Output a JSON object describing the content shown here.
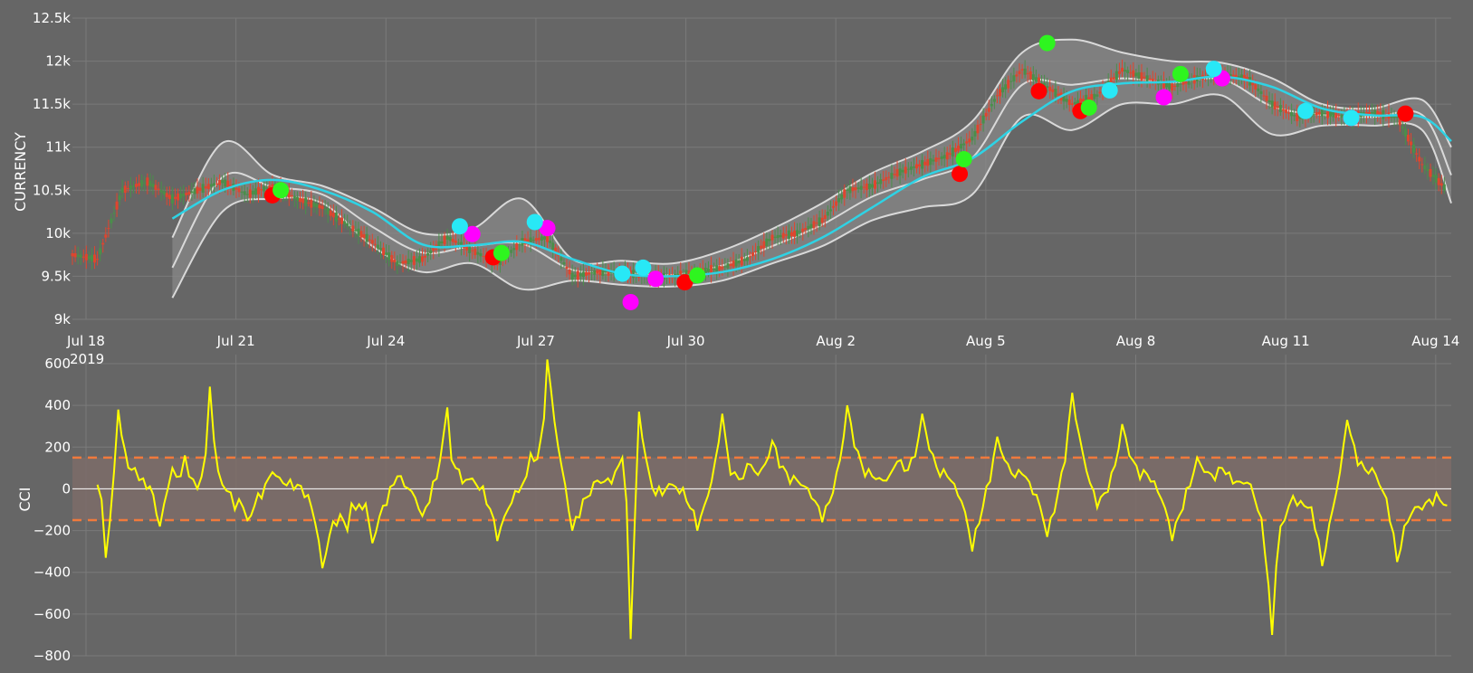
{
  "chart_data": [
    {
      "type": "line",
      "subtype": "candlestick-with-bollinger-bands",
      "ylabel": "CURRENCY",
      "xlabel": "",
      "x_ticks": [
        "Jul 18",
        "Jul 21",
        "Jul 24",
        "Jul 27",
        "Jul 30",
        "Aug 2",
        "Aug 5",
        "Aug 8",
        "Aug 11",
        "Aug 14"
      ],
      "x_year_label": "2019",
      "x_range": [
        "2019-07-18",
        "2019-08-14T14:00"
      ],
      "y_ticks": [
        "9k",
        "9.5k",
        "10k",
        "10.5k",
        "11k",
        "11.5k",
        "12k",
        "12.5k"
      ],
      "ylim": [
        9000,
        12500
      ],
      "price_series": {
        "x": [
          "2019-07-18",
          "2019-07-18T12:00",
          "2019-07-19",
          "2019-07-19T12:00",
          "2019-07-20",
          "2019-07-20T12:00",
          "2019-07-21",
          "2019-07-21T12:00",
          "2019-07-22",
          "2019-07-22T12:00",
          "2019-07-23",
          "2019-07-23T12:00",
          "2019-07-24",
          "2019-07-24T12:00",
          "2019-07-25",
          "2019-07-25T12:00",
          "2019-07-26",
          "2019-07-26T12:00",
          "2019-07-27",
          "2019-07-27T12:00",
          "2019-07-28",
          "2019-07-28T12:00",
          "2019-07-29",
          "2019-07-29T12:00",
          "2019-07-30",
          "2019-07-30T12:00",
          "2019-07-31",
          "2019-07-31T12:00",
          "2019-08-01",
          "2019-08-01T12:00",
          "2019-08-02",
          "2019-08-02T12:00",
          "2019-08-03",
          "2019-08-03T12:00",
          "2019-08-04",
          "2019-08-04T12:00",
          "2019-08-05",
          "2019-08-05T12:00",
          "2019-08-06",
          "2019-08-06T12:00",
          "2019-08-07",
          "2019-08-07T12:00",
          "2019-08-08",
          "2019-08-08T12:00",
          "2019-08-09",
          "2019-08-09T12:00",
          "2019-08-10",
          "2019-08-10T12:00",
          "2019-08-11",
          "2019-08-11T12:00",
          "2019-08-12",
          "2019-08-12T12:00",
          "2019-08-13",
          "2019-08-13T12:00",
          "2019-08-14",
          "2019-08-14T12:00"
        ],
        "y": [
          9750,
          9700,
          10500,
          10600,
          10400,
          10500,
          10600,
          10450,
          10550,
          10400,
          10300,
          10100,
          9900,
          9650,
          9700,
          9950,
          9800,
          9650,
          9900,
          9950,
          9500,
          9550,
          9550,
          9500,
          9500,
          9550,
          9600,
          9700,
          9950,
          10000,
          10150,
          10500,
          10550,
          10700,
          10800,
          10900,
          11100,
          11600,
          11900,
          11700,
          11500,
          11600,
          11900,
          11800,
          11700,
          11800,
          11850,
          11800,
          11500,
          11350,
          11400,
          11350,
          11400,
          11350,
          10800,
          10500
        ]
      },
      "moving_average": {
        "x": [
          "2019-07-20",
          "2019-07-21",
          "2019-07-22",
          "2019-07-23",
          "2019-07-24",
          "2019-07-25",
          "2019-07-26",
          "2019-07-27",
          "2019-07-28",
          "2019-07-29",
          "2019-07-30",
          "2019-07-31",
          "2019-08-01",
          "2019-08-02",
          "2019-08-03",
          "2019-08-04",
          "2019-08-05",
          "2019-08-06",
          "2019-08-07",
          "2019-08-08",
          "2019-08-09",
          "2019-08-10",
          "2019-08-11",
          "2019-08-12",
          "2019-08-13",
          "2019-08-14",
          "2019-08-14T14:00"
        ],
        "y": [
          10170,
          10500,
          10620,
          10500,
          10250,
          9870,
          9860,
          9900,
          9700,
          9530,
          9500,
          9550,
          9700,
          9950,
          10300,
          10650,
          10870,
          11300,
          11650,
          11740,
          11760,
          11820,
          11700,
          11450,
          11370,
          11350,
          11070
        ]
      },
      "band_upper": [
        9950,
        11050,
        10680,
        10550,
        10300,
        10000,
        10050,
        10400,
        9700,
        9680,
        9650,
        9800,
        10050,
        10350,
        10700,
        10950,
        11300,
        12100,
        12250,
        12100,
        12000,
        11980,
        11800,
        11500,
        11450,
        11550,
        11000
      ],
      "band_lower": [
        9250,
        10250,
        10400,
        10350,
        9850,
        9550,
        9650,
        9350,
        9450,
        9400,
        9380,
        9450,
        9650,
        9850,
        10150,
        10300,
        10450,
        11350,
        11200,
        11500,
        11500,
        11600,
        11150,
        11250,
        11250,
        11200,
        10350
      ],
      "signals": {
        "cyan": [
          [
            "2019-07-25T18:00",
            10080
          ],
          [
            "2019-07-27T06:00",
            10130
          ],
          [
            "2019-07-29T00:00",
            9530
          ],
          [
            "2019-07-29T10:00",
            9600
          ],
          [
            "2019-08-07T18:00",
            11660
          ],
          [
            "2019-08-09T20:00",
            11910
          ],
          [
            "2019-08-11T16:00",
            11420
          ],
          [
            "2019-08-12T14:00",
            11340
          ]
        ],
        "magenta": [
          [
            "2019-07-26T00:00",
            9990
          ],
          [
            "2019-07-27T12:00",
            10060
          ],
          [
            "2019-07-29T04:00",
            9200
          ],
          [
            "2019-07-29T16:00",
            9470
          ],
          [
            "2019-08-08T20:00",
            11580
          ],
          [
            "2019-08-10T00:00",
            11800
          ],
          [
            "2019-08-12T14:00",
            11340
          ]
        ],
        "red": [
          [
            "2019-07-22T00:00",
            10440
          ],
          [
            "2019-07-26T10:00",
            9720
          ],
          [
            "2019-07-30T06:00",
            9430
          ],
          [
            "2019-08-04T18:00",
            10690
          ],
          [
            "2019-08-06T08:00",
            11650
          ],
          [
            "2019-08-07T04:00",
            11420
          ],
          [
            "2019-08-13T16:00",
            11390
          ]
        ],
        "green": [
          [
            "2019-07-22T04:00",
            10500
          ],
          [
            "2019-07-26T14:00",
            9770
          ],
          [
            "2019-07-30T12:00",
            9510
          ],
          [
            "2019-08-04T20:00",
            10860
          ],
          [
            "2019-08-06T12:00",
            12210
          ],
          [
            "2019-08-07T08:00",
            11460
          ],
          [
            "2019-08-09T04:00",
            11850
          ]
        ]
      },
      "colors": {
        "background": "#666666",
        "grid": "#7a7a7a",
        "band": "#d9d9d9",
        "band_fill": "#8a8a8a",
        "moving_average": "#2ed3e5",
        "candle_up": "#4a8f4a",
        "candle_down": "#e0452e",
        "signal_cyan": "#28e8f6",
        "signal_magenta": "#ff00ff",
        "signal_red": "#ff0000",
        "signal_green": "#2ef51f"
      }
    },
    {
      "type": "line",
      "ylabel": "CCI",
      "xlabel": "",
      "y_ticks": [
        "600",
        "400",
        "200",
        "0",
        "−200",
        "−400",
        "−600",
        "−800"
      ],
      "ylim": [
        -800,
        600
      ],
      "threshold_upper": 150,
      "threshold_lower": -150,
      "series": [
        {
          "x": [
            "2019-07-18T12:00",
            "2019-07-18T16:00",
            "2019-07-18T22:00",
            "2019-07-19T06:00",
            "2019-07-19T10:00",
            "2019-07-19T18:00",
            "2019-07-20T00:00",
            "2019-07-20T06:00",
            "2019-07-20T12:00",
            "2019-07-20T18:00",
            "2019-07-21T00:00",
            "2019-07-21T06:00",
            "2019-07-21T12:00",
            "2019-07-22T00:00",
            "2019-07-22T12:00",
            "2019-07-23T00:00",
            "2019-07-23T12:00",
            "2019-07-23T16:00",
            "2019-07-24T00:00",
            "2019-07-24T12:00",
            "2019-07-25T00:00",
            "2019-07-25T12:00",
            "2019-07-25T16:00",
            "2019-07-26T00:00",
            "2019-07-26T12:00",
            "2019-07-27T00:00",
            "2019-07-27T04:00",
            "2019-07-27T12:00",
            "2019-07-28T00:00",
            "2019-07-28T12:00",
            "2019-07-29T00:00",
            "2019-07-29T04:00",
            "2019-07-29T08:00",
            "2019-07-29T16:00",
            "2019-07-30T00:00",
            "2019-07-30T12:00",
            "2019-07-31T00:00",
            "2019-07-31T06:00",
            "2019-07-31T12:00",
            "2019-08-01T00:00",
            "2019-08-01T12:00",
            "2019-08-02T00:00",
            "2019-08-02T12:00",
            "2019-08-03T00:00",
            "2019-08-03T12:00",
            "2019-08-04T00:00",
            "2019-08-04T12:00",
            "2019-08-05T00:00",
            "2019-08-05T12:00",
            "2019-08-06T00:00",
            "2019-08-06T12:00",
            "2019-08-07T00:00",
            "2019-08-07T12:00",
            "2019-08-08T00:00",
            "2019-08-08T12:00",
            "2019-08-09T00:00",
            "2019-08-09T12:00",
            "2019-08-10T00:00",
            "2019-08-10T12:00",
            "2019-08-11T00:00",
            "2019-08-11T06:00",
            "2019-08-11T12:00",
            "2019-08-12T00:00",
            "2019-08-12T12:00",
            "2019-08-13T00:00",
            "2019-08-13T12:00",
            "2019-08-14T00:00",
            "2019-08-14T12:00"
          ],
          "values": [
            20,
            -330,
            380,
            100,
            50,
            -180,
            100,
            160,
            0,
            490,
            20,
            -100,
            -150,
            80,
            20,
            -380,
            -200,
            -100,
            -260,
            60,
            -130,
            390,
            100,
            50,
            -250,
            20,
            170,
            620,
            -200,
            40,
            150,
            -720,
            370,
            -30,
            20,
            -200,
            360,
            80,
            120,
            230,
            40,
            -160,
            400,
            60,
            130,
            360,
            60,
            -300,
            250,
            70,
            -230,
            460,
            -90,
            310,
            70,
            -250,
            150,
            100,
            30,
            -700,
            -150,
            -80,
            -370,
            330,
            100,
            -350,
            -100,
            -80
          ]
        }
      ],
      "colors": {
        "line": "#ffff00",
        "threshold_band": "#7c6c69",
        "threshold_line": "#f07a3c",
        "zero_line": "#ffffff"
      }
    }
  ]
}
